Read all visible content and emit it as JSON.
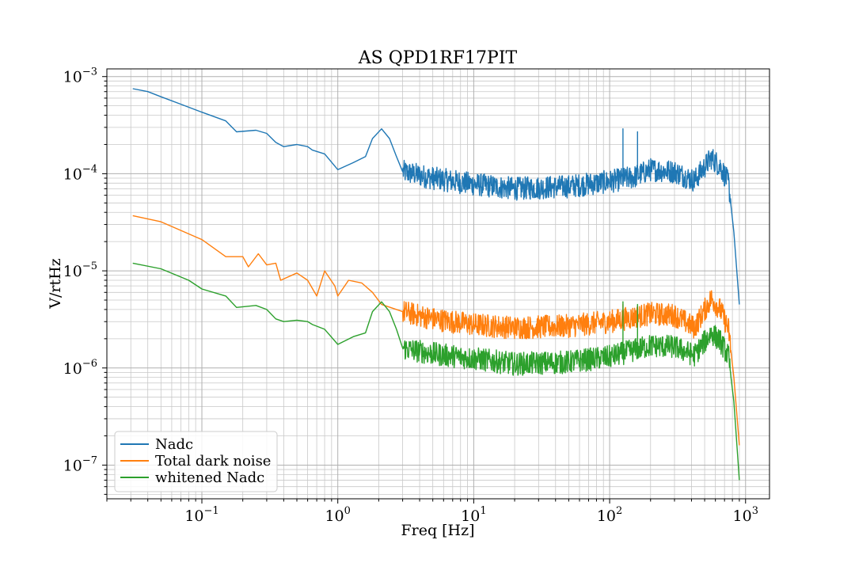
{
  "chart_data": {
    "type": "line",
    "title": "AS QPD1RF17PIT",
    "xlabel": "Freq [Hz]",
    "ylabel": "V/rtHz",
    "xscale": "log",
    "yscale": "log",
    "xlim": [
      0.02,
      1500
    ],
    "ylim": [
      4.5e-08,
      0.0012
    ],
    "grid": true,
    "legend_position": "lower-left",
    "x_ticks": [
      {
        "base": "10",
        "exp": "−1"
      },
      {
        "base": "10",
        "exp": "0"
      },
      {
        "base": "10",
        "exp": "1"
      },
      {
        "base": "10",
        "exp": "2"
      },
      {
        "base": "10",
        "exp": "3"
      }
    ],
    "y_ticks": [
      {
        "base": "10",
        "exp": "−7"
      },
      {
        "base": "10",
        "exp": "−6"
      },
      {
        "base": "10",
        "exp": "−5"
      },
      {
        "base": "10",
        "exp": "−4"
      },
      {
        "base": "10",
        "exp": "−3"
      }
    ],
    "series": [
      {
        "name": "Nadc",
        "color": "#1f77b4",
        "noise_amplitude": 0.12,
        "points": [
          [
            0.031,
            0.00075
          ],
          [
            0.04,
            0.0007
          ],
          [
            0.05,
            0.00062
          ],
          [
            0.07,
            0.00052
          ],
          [
            0.1,
            0.00043
          ],
          [
            0.15,
            0.00035
          ],
          [
            0.18,
            0.00027
          ],
          [
            0.25,
            0.00028
          ],
          [
            0.3,
            0.00026
          ],
          [
            0.35,
            0.00021
          ],
          [
            0.4,
            0.00019
          ],
          [
            0.5,
            0.0002
          ],
          [
            0.6,
            0.00019
          ],
          [
            0.65,
            0.000175
          ],
          [
            0.8,
            0.00016
          ],
          [
            1.0,
            0.00011
          ],
          [
            1.3,
            0.00013
          ],
          [
            1.6,
            0.00015
          ],
          [
            1.8,
            0.00023
          ],
          [
            2.1,
            0.00029
          ],
          [
            2.4,
            0.00023
          ],
          [
            2.7,
            0.00015
          ],
          [
            3.0,
            0.000105
          ],
          [
            5.0,
            9e-05
          ],
          [
            10,
            7.8e-05
          ],
          [
            20,
            7e-05
          ],
          [
            50,
            7.4e-05
          ],
          [
            100,
            8.3e-05
          ],
          [
            150,
            9.2e-05
          ],
          [
            200,
            0.00011
          ],
          [
            300,
            0.000105
          ],
          [
            420,
            8.5e-05
          ],
          [
            560,
            0.000145
          ],
          [
            650,
            0.00012
          ],
          [
            750,
            8e-05
          ],
          [
            820,
            2.5e-05
          ],
          [
            900,
            4.5e-06
          ]
        ],
        "spikes": [
          [
            125,
            0.00029
          ],
          [
            160,
            0.00027
          ]
        ]
      },
      {
        "name": "Total dark noise",
        "color": "#ff7f0e",
        "noise_amplitude": 0.12,
        "points": [
          [
            0.031,
            3.7e-05
          ],
          [
            0.05,
            3.2e-05
          ],
          [
            0.1,
            2.1e-05
          ],
          [
            0.15,
            1.4e-05
          ],
          [
            0.2,
            1.4e-05
          ],
          [
            0.22,
            1.1e-05
          ],
          [
            0.26,
            1.5e-05
          ],
          [
            0.3,
            1.15e-05
          ],
          [
            0.35,
            1.2e-05
          ],
          [
            0.38,
            8e-06
          ],
          [
            0.5,
            9.5e-06
          ],
          [
            0.6,
            8e-06
          ],
          [
            0.7,
            5.5e-06
          ],
          [
            0.8,
            1e-05
          ],
          [
            0.95,
            7e-06
          ],
          [
            1.0,
            5.5e-06
          ],
          [
            1.2,
            8e-06
          ],
          [
            1.5,
            7.5e-06
          ],
          [
            1.8,
            6e-06
          ],
          [
            2.1,
            4.5e-06
          ],
          [
            3.0,
            3.8e-06
          ],
          [
            5.0,
            3.2e-06
          ],
          [
            10,
            2.8e-06
          ],
          [
            20,
            2.6e-06
          ],
          [
            50,
            2.7e-06
          ],
          [
            100,
            3e-06
          ],
          [
            200,
            3.6e-06
          ],
          [
            300,
            3.5e-06
          ],
          [
            420,
            2.6e-06
          ],
          [
            560,
            5.2e-06
          ],
          [
            650,
            4e-06
          ],
          [
            750,
            2.5e-06
          ],
          [
            820,
            8e-07
          ],
          [
            900,
            1.6e-07
          ]
        ],
        "spikes": [
          [
            125,
            4.5e-06
          ],
          [
            160,
            4.3e-06
          ]
        ]
      },
      {
        "name": "whitened Nadc",
        "color": "#2ca02c",
        "noise_amplitude": 0.12,
        "points": [
          [
            0.031,
            1.2e-05
          ],
          [
            0.05,
            1.05e-05
          ],
          [
            0.08,
            8e-06
          ],
          [
            0.1,
            6.5e-06
          ],
          [
            0.15,
            5.5e-06
          ],
          [
            0.18,
            4.2e-06
          ],
          [
            0.25,
            4.4e-06
          ],
          [
            0.3,
            4e-06
          ],
          [
            0.35,
            3.2e-06
          ],
          [
            0.4,
            3e-06
          ],
          [
            0.5,
            3.1e-06
          ],
          [
            0.6,
            3e-06
          ],
          [
            0.65,
            2.8e-06
          ],
          [
            0.8,
            2.5e-06
          ],
          [
            1.0,
            1.75e-06
          ],
          [
            1.3,
            2.1e-06
          ],
          [
            1.6,
            2.3e-06
          ],
          [
            1.8,
            3.8e-06
          ],
          [
            2.1,
            4.8e-06
          ],
          [
            2.4,
            3.8e-06
          ],
          [
            2.7,
            2.5e-06
          ],
          [
            3.0,
            1.6e-06
          ],
          [
            5.0,
            1.4e-06
          ],
          [
            10,
            1.25e-06
          ],
          [
            20,
            1.1e-06
          ],
          [
            50,
            1.15e-06
          ],
          [
            100,
            1.3e-06
          ],
          [
            200,
            1.7e-06
          ],
          [
            300,
            1.65e-06
          ],
          [
            420,
            1.35e-06
          ],
          [
            560,
            2.3e-06
          ],
          [
            650,
            1.9e-06
          ],
          [
            750,
            1.3e-06
          ],
          [
            820,
            4.5e-07
          ],
          [
            900,
            7e-08
          ]
        ],
        "spikes": [
          [
            125,
            4.8e-06
          ],
          [
            160,
            4.5e-06
          ]
        ]
      }
    ]
  }
}
